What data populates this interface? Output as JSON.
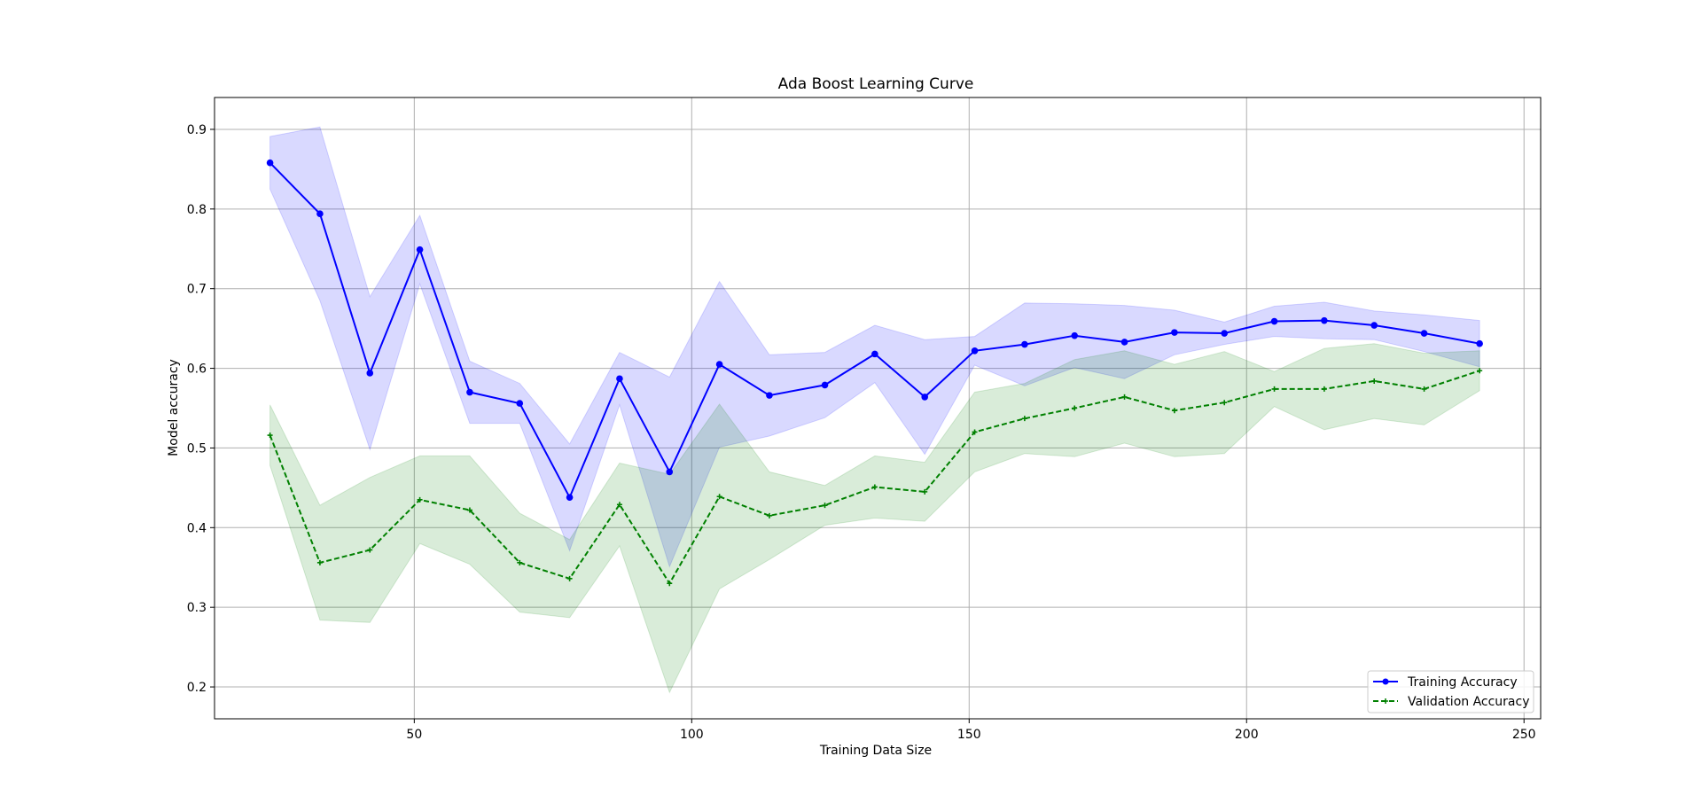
{
  "chart_data": {
    "type": "line",
    "title": "Ada Boost Learning Curve",
    "xlabel": "Training Data Size",
    "ylabel": "Model accuracy",
    "xlim": [
      14,
      253
    ],
    "ylim": [
      0.16,
      0.94
    ],
    "xticks": [
      50,
      100,
      150,
      200,
      250
    ],
    "yticks": [
      0.2,
      0.3,
      0.4,
      0.5,
      0.6,
      0.7,
      0.8,
      0.9
    ],
    "grid": true,
    "legend_position": "lower-right",
    "x": [
      24,
      33,
      42,
      51,
      60,
      69,
      78,
      87,
      96,
      105,
      114,
      124,
      133,
      142,
      151,
      160,
      169,
      178,
      187,
      196,
      205,
      214,
      223,
      232,
      242
    ],
    "series": [
      {
        "name": "Training Accuracy",
        "color": "#0000ff",
        "line_style": "solid",
        "marker": "circle",
        "band_color": "#0000ff",
        "values": [
          0.858,
          0.794,
          0.594,
          0.749,
          0.57,
          0.556,
          0.438,
          0.587,
          0.47,
          0.605,
          0.566,
          0.579,
          0.618,
          0.564,
          0.622,
          0.63,
          0.641,
          0.633,
          0.645,
          0.644,
          0.659,
          0.66,
          0.654,
          0.644,
          0.631
        ],
        "upper": [
          0.891,
          0.903,
          0.69,
          0.792,
          0.609,
          0.581,
          0.505,
          0.62,
          0.589,
          0.709,
          0.617,
          0.62,
          0.654,
          0.636,
          0.64,
          0.682,
          0.681,
          0.679,
          0.673,
          0.658,
          0.678,
          0.683,
          0.672,
          0.667,
          0.66
        ],
        "lower": [
          0.825,
          0.685,
          0.498,
          0.706,
          0.531,
          0.531,
          0.371,
          0.554,
          0.351,
          0.501,
          0.515,
          0.538,
          0.582,
          0.492,
          0.604,
          0.578,
          0.601,
          0.587,
          0.617,
          0.63,
          0.64,
          0.637,
          0.636,
          0.621,
          0.602
        ]
      },
      {
        "name": "Validation Accuracy",
        "color": "#008000",
        "line_style": "dashed",
        "marker": "plus",
        "band_color": "#008000",
        "values": [
          0.516,
          0.356,
          0.372,
          0.435,
          0.422,
          0.356,
          0.336,
          0.429,
          0.33,
          0.439,
          0.415,
          0.428,
          0.451,
          0.445,
          0.52,
          0.537,
          0.55,
          0.564,
          0.547,
          0.557,
          0.574,
          0.574,
          0.584,
          0.574,
          0.597
        ],
        "upper": [
          0.554,
          0.428,
          0.463,
          0.49,
          0.49,
          0.418,
          0.385,
          0.481,
          0.467,
          0.555,
          0.47,
          0.453,
          0.49,
          0.482,
          0.57,
          0.581,
          0.611,
          0.622,
          0.605,
          0.621,
          0.596,
          0.625,
          0.631,
          0.619,
          0.622
        ],
        "lower": [
          0.478,
          0.284,
          0.281,
          0.38,
          0.354,
          0.294,
          0.287,
          0.377,
          0.193,
          0.323,
          0.36,
          0.403,
          0.412,
          0.408,
          0.47,
          0.493,
          0.489,
          0.506,
          0.489,
          0.493,
          0.552,
          0.523,
          0.537,
          0.529,
          0.572
        ]
      }
    ]
  }
}
